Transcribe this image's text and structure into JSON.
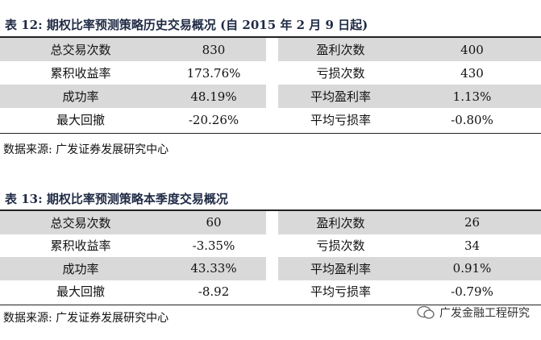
{
  "table12": {
    "title": "表 12:  期权比率预测策略历史交易概况 (自 2015 年 2 月 9 日起)",
    "rows": [
      [
        "总交易次数",
        "830",
        "盈利次数",
        "400"
      ],
      [
        "累积收益率",
        "173.76%",
        "亏损次数",
        "430"
      ],
      [
        "成功率",
        "48.19%",
        "平均盈利率",
        "1.13%"
      ],
      [
        "最大回撤",
        "-20.26%",
        "平均亏损率",
        "-0.80%"
      ]
    ],
    "source": "数据来源:  广发证券发展研究中心"
  },
  "table13": {
    "title": "表 13:  期权比率预测策略本季度交易概况",
    "rows": [
      [
        "总交易次数",
        "60",
        "盈利次数",
        "26"
      ],
      [
        "累积收益率",
        "-3.35%",
        "亏损次数",
        "34"
      ],
      [
        "成功率",
        "43.33%",
        "平均盈利率",
        "0.91%"
      ],
      [
        "最大回撤",
        "-8.92",
        "平均亏损率",
        "-0.79%"
      ]
    ],
    "source": "数据来源:  广发证券发展研究中心"
  },
  "watermark": "广发金融工程研究"
}
